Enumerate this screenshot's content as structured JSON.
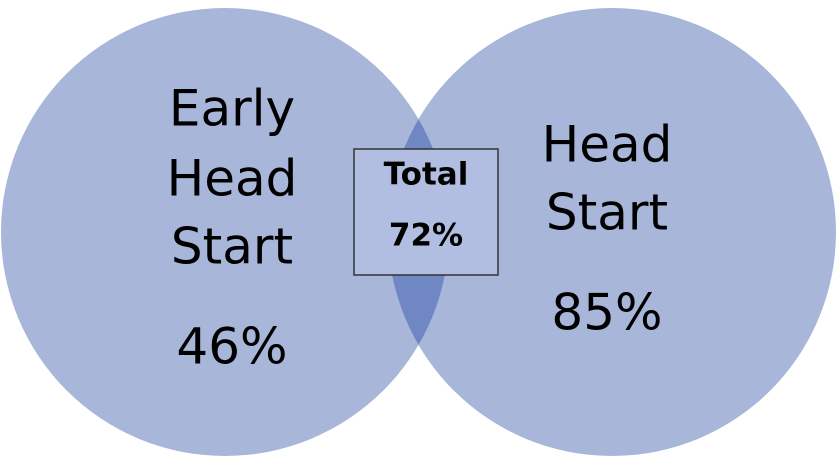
{
  "sets": [
    {
      "label_lines": [
        "Early",
        "Head",
        "Start"
      ],
      "value": "46%"
    },
    {
      "label_lines": [
        "Head",
        "Start"
      ],
      "value": "85%"
    }
  ],
  "intersection": {
    "label": "Total",
    "value": "72%"
  }
}
